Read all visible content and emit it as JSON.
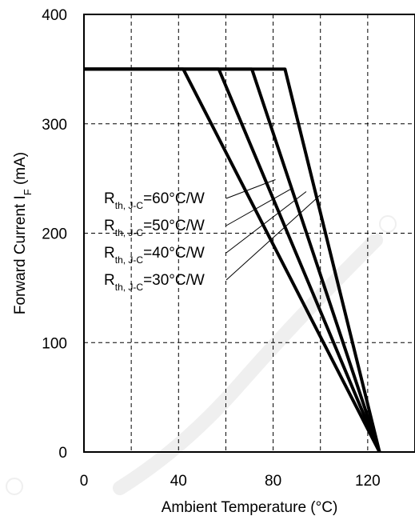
{
  "chart_data": {
    "type": "line",
    "xlabel": "Ambient Temperature (°C)",
    "ylabel_main": "Forward Current I",
    "ylabel_sub": "F",
    "ylabel_unit": " (mA)",
    "xlim": [
      0,
      140
    ],
    "ylim": [
      0,
      400
    ],
    "x_ticks": [
      0,
      40,
      80,
      120
    ],
    "y_ticks": [
      0,
      100,
      200,
      300,
      400
    ],
    "x_grid": [
      20,
      40,
      60,
      80,
      100,
      120
    ],
    "y_grid": [
      100,
      200,
      300
    ],
    "grid": "dashed",
    "line_color": "#000000",
    "series": [
      {
        "x": [
          0,
          42,
          125
        ],
        "y": [
          350,
          350,
          0
        ]
      },
      {
        "x": [
          0,
          57,
          125
        ],
        "y": [
          350,
          350,
          0
        ]
      },
      {
        "x": [
          0,
          71,
          125
        ],
        "y": [
          350,
          350,
          0
        ]
      },
      {
        "x": [
          0,
          85,
          125
        ],
        "y": [
          350,
          350,
          0
        ]
      }
    ],
    "annotations": [
      {
        "main": "R",
        "sub": "th, J-C",
        "rest": "=60°C/W",
        "target": [
          81,
          249
        ]
      },
      {
        "main": "R",
        "sub": "th, J-C",
        "rest": "=50°C/W",
        "target": [
          88,
          241
        ]
      },
      {
        "main": "R",
        "sub": "th, J-C",
        "rest": "=40°C/W",
        "target": [
          94,
          238
        ]
      },
      {
        "main": "R",
        "sub": "th, J-C",
        "rest": "=30°C/W",
        "target": [
          100,
          235
        ]
      }
    ]
  }
}
